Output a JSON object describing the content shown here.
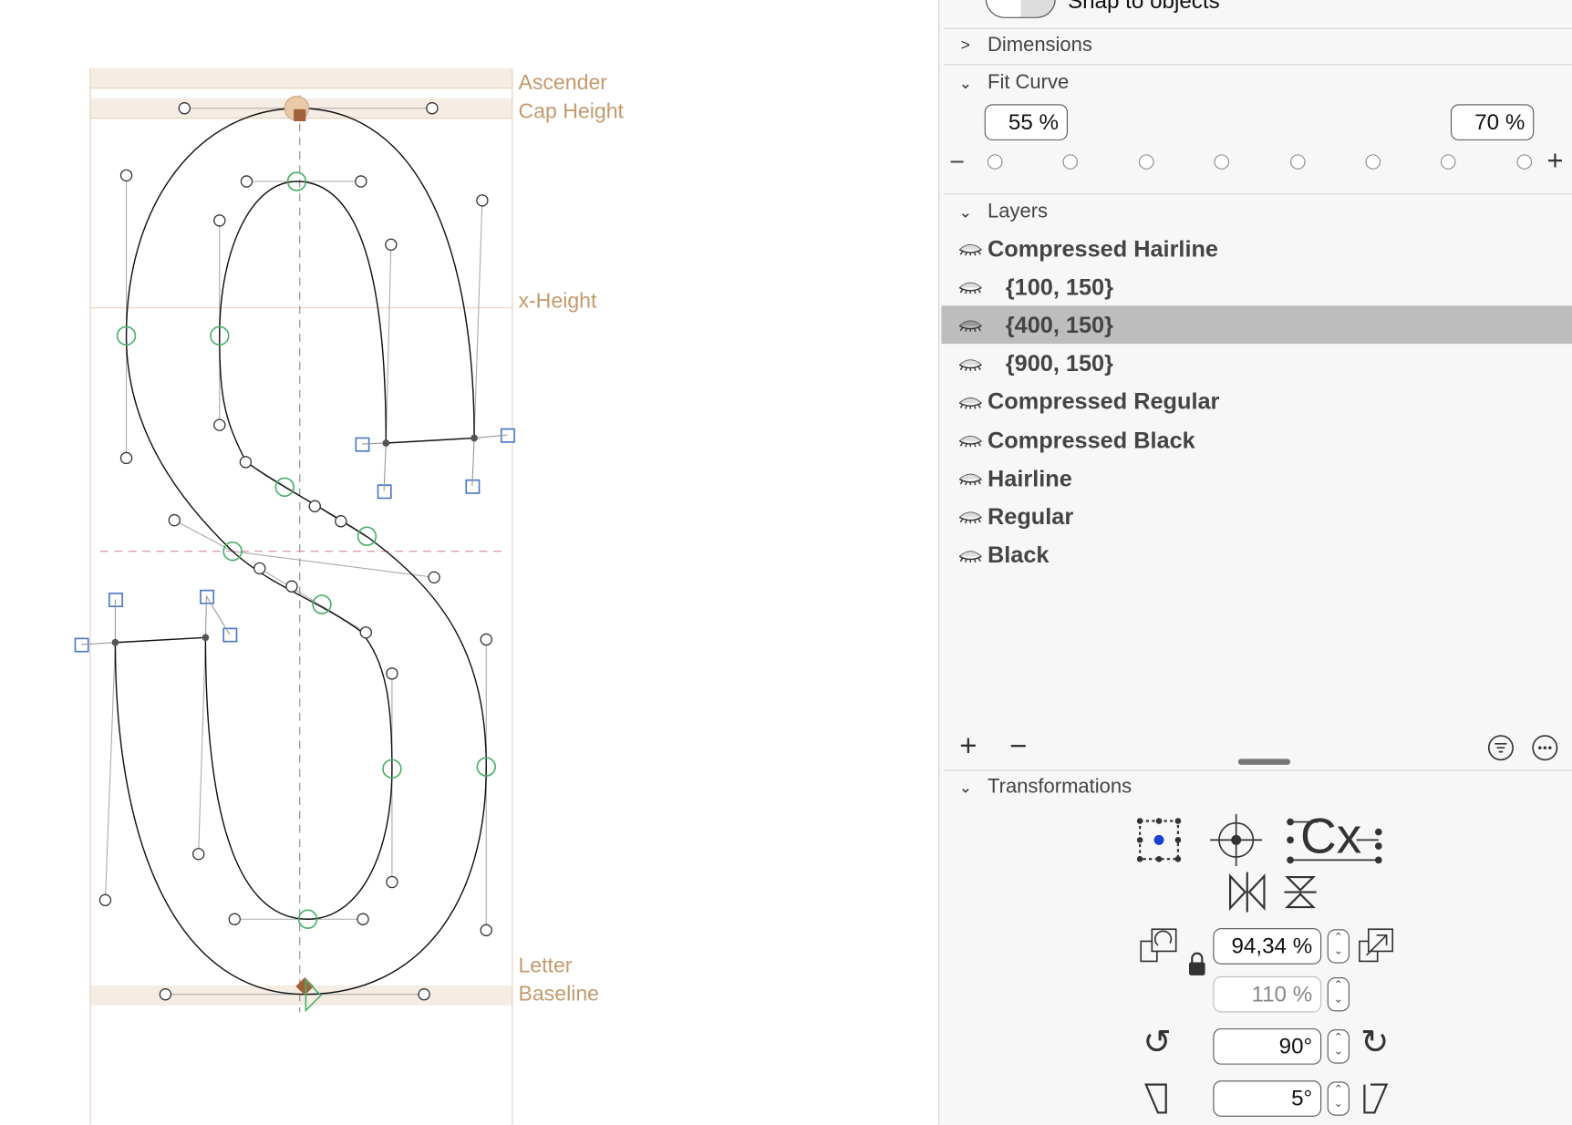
{
  "guides": {
    "ascender": "Ascender",
    "cap_height": "Cap Height",
    "x_height": "x-Height",
    "letter": "Letter",
    "baseline": "Baseline"
  },
  "panel": {
    "snap_label": "Snap to objects",
    "dimensions": {
      "label": "Dimensions",
      "expanded": false
    },
    "fit_curve": {
      "label": "Fit Curve",
      "min_value": "55 %",
      "max_value": "70 %",
      "minus": "−",
      "plus": "+",
      "steps": 8
    },
    "layers": {
      "label": "Layers",
      "items": [
        {
          "label": "Compressed Hairline",
          "indent": false,
          "selected": false
        },
        {
          "label": "{100, 150}",
          "indent": true,
          "selected": false
        },
        {
          "label": "{400, 150}",
          "indent": true,
          "selected": true
        },
        {
          "label": "{900, 150}",
          "indent": true,
          "selected": false
        },
        {
          "label": "Compressed Regular",
          "indent": false,
          "selected": false
        },
        {
          "label": "Compressed Black",
          "indent": false,
          "selected": false
        },
        {
          "label": "Hairline",
          "indent": false,
          "selected": false
        },
        {
          "label": "Regular",
          "indent": false,
          "selected": false
        },
        {
          "label": "Black",
          "indent": false,
          "selected": false
        }
      ]
    },
    "transformations": {
      "label": "Transformations",
      "scale_x": "94,34 %",
      "scale_y": "110 %",
      "rotate": "90°",
      "slant": "5°",
      "metrics_icon_text": "Cx"
    }
  },
  "colors": {
    "guide": "#c49a6c",
    "selection": "#bdbdbd",
    "node_green": "#4caf6a",
    "handle_blue": "#4a78c8",
    "origin": "#1a3fd6"
  }
}
